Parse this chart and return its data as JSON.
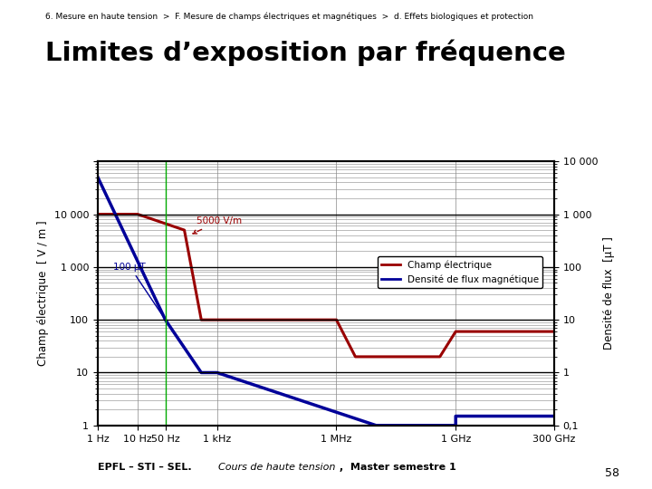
{
  "title": "Limites d’exposition par fréquence",
  "subtitle": "6. Mesure en haute tension  >  F. Mesure de champs électriques et magnétiques  >  d. Effets biologiques et protection",
  "page_number": "58",
  "xlabel_ticks": [
    "1 Hz",
    "10 Hz",
    "50 Hz",
    "1 kHz",
    "1 MHz",
    "1 GHz",
    "300 GHz"
  ],
  "xlabel_tick_vals": [
    1,
    10,
    50,
    1000,
    1000000,
    1000000000,
    300000000000
  ],
  "ylabel_left": "Champ électrique  [ V / m ]",
  "ylabel_right": "Densité de flux  [μT ]",
  "ylim_left": [
    1,
    100000
  ],
  "xmin": 1,
  "xmax": 300000000000,
  "annotation_5000": "5000 V/m",
  "annotation_100uT": "100 μT",
  "electric_color": "#990000",
  "magnetic_color": "#000099",
  "electric_x": [
    1,
    10,
    10,
    150,
    400,
    1000,
    1000000,
    3000000,
    400000000,
    1000000000,
    300000000000
  ],
  "electric_y": [
    10000,
    10000,
    10000,
    5000,
    100,
    100,
    100,
    20,
    20,
    60,
    60
  ],
  "magnetic_x": [
    1,
    50,
    400,
    1000,
    10000000,
    1000000000,
    1000000000,
    300000000000
  ],
  "magnetic_y": [
    50000,
    100,
    10,
    10,
    1,
    1,
    1.5,
    1.5
  ],
  "legend_electric": "Champ électrique",
  "legend_magnetic": "Densité de flux magnétique",
  "annotation_50hz_color": "#00aa00",
  "grid_color": "#888888",
  "background_color": "#ffffff",
  "footer_bold": "EPFL – STI – SEL.",
  "footer_italic": "Cours de haute tension",
  "footer_rest": " ,  Master semestre 1"
}
